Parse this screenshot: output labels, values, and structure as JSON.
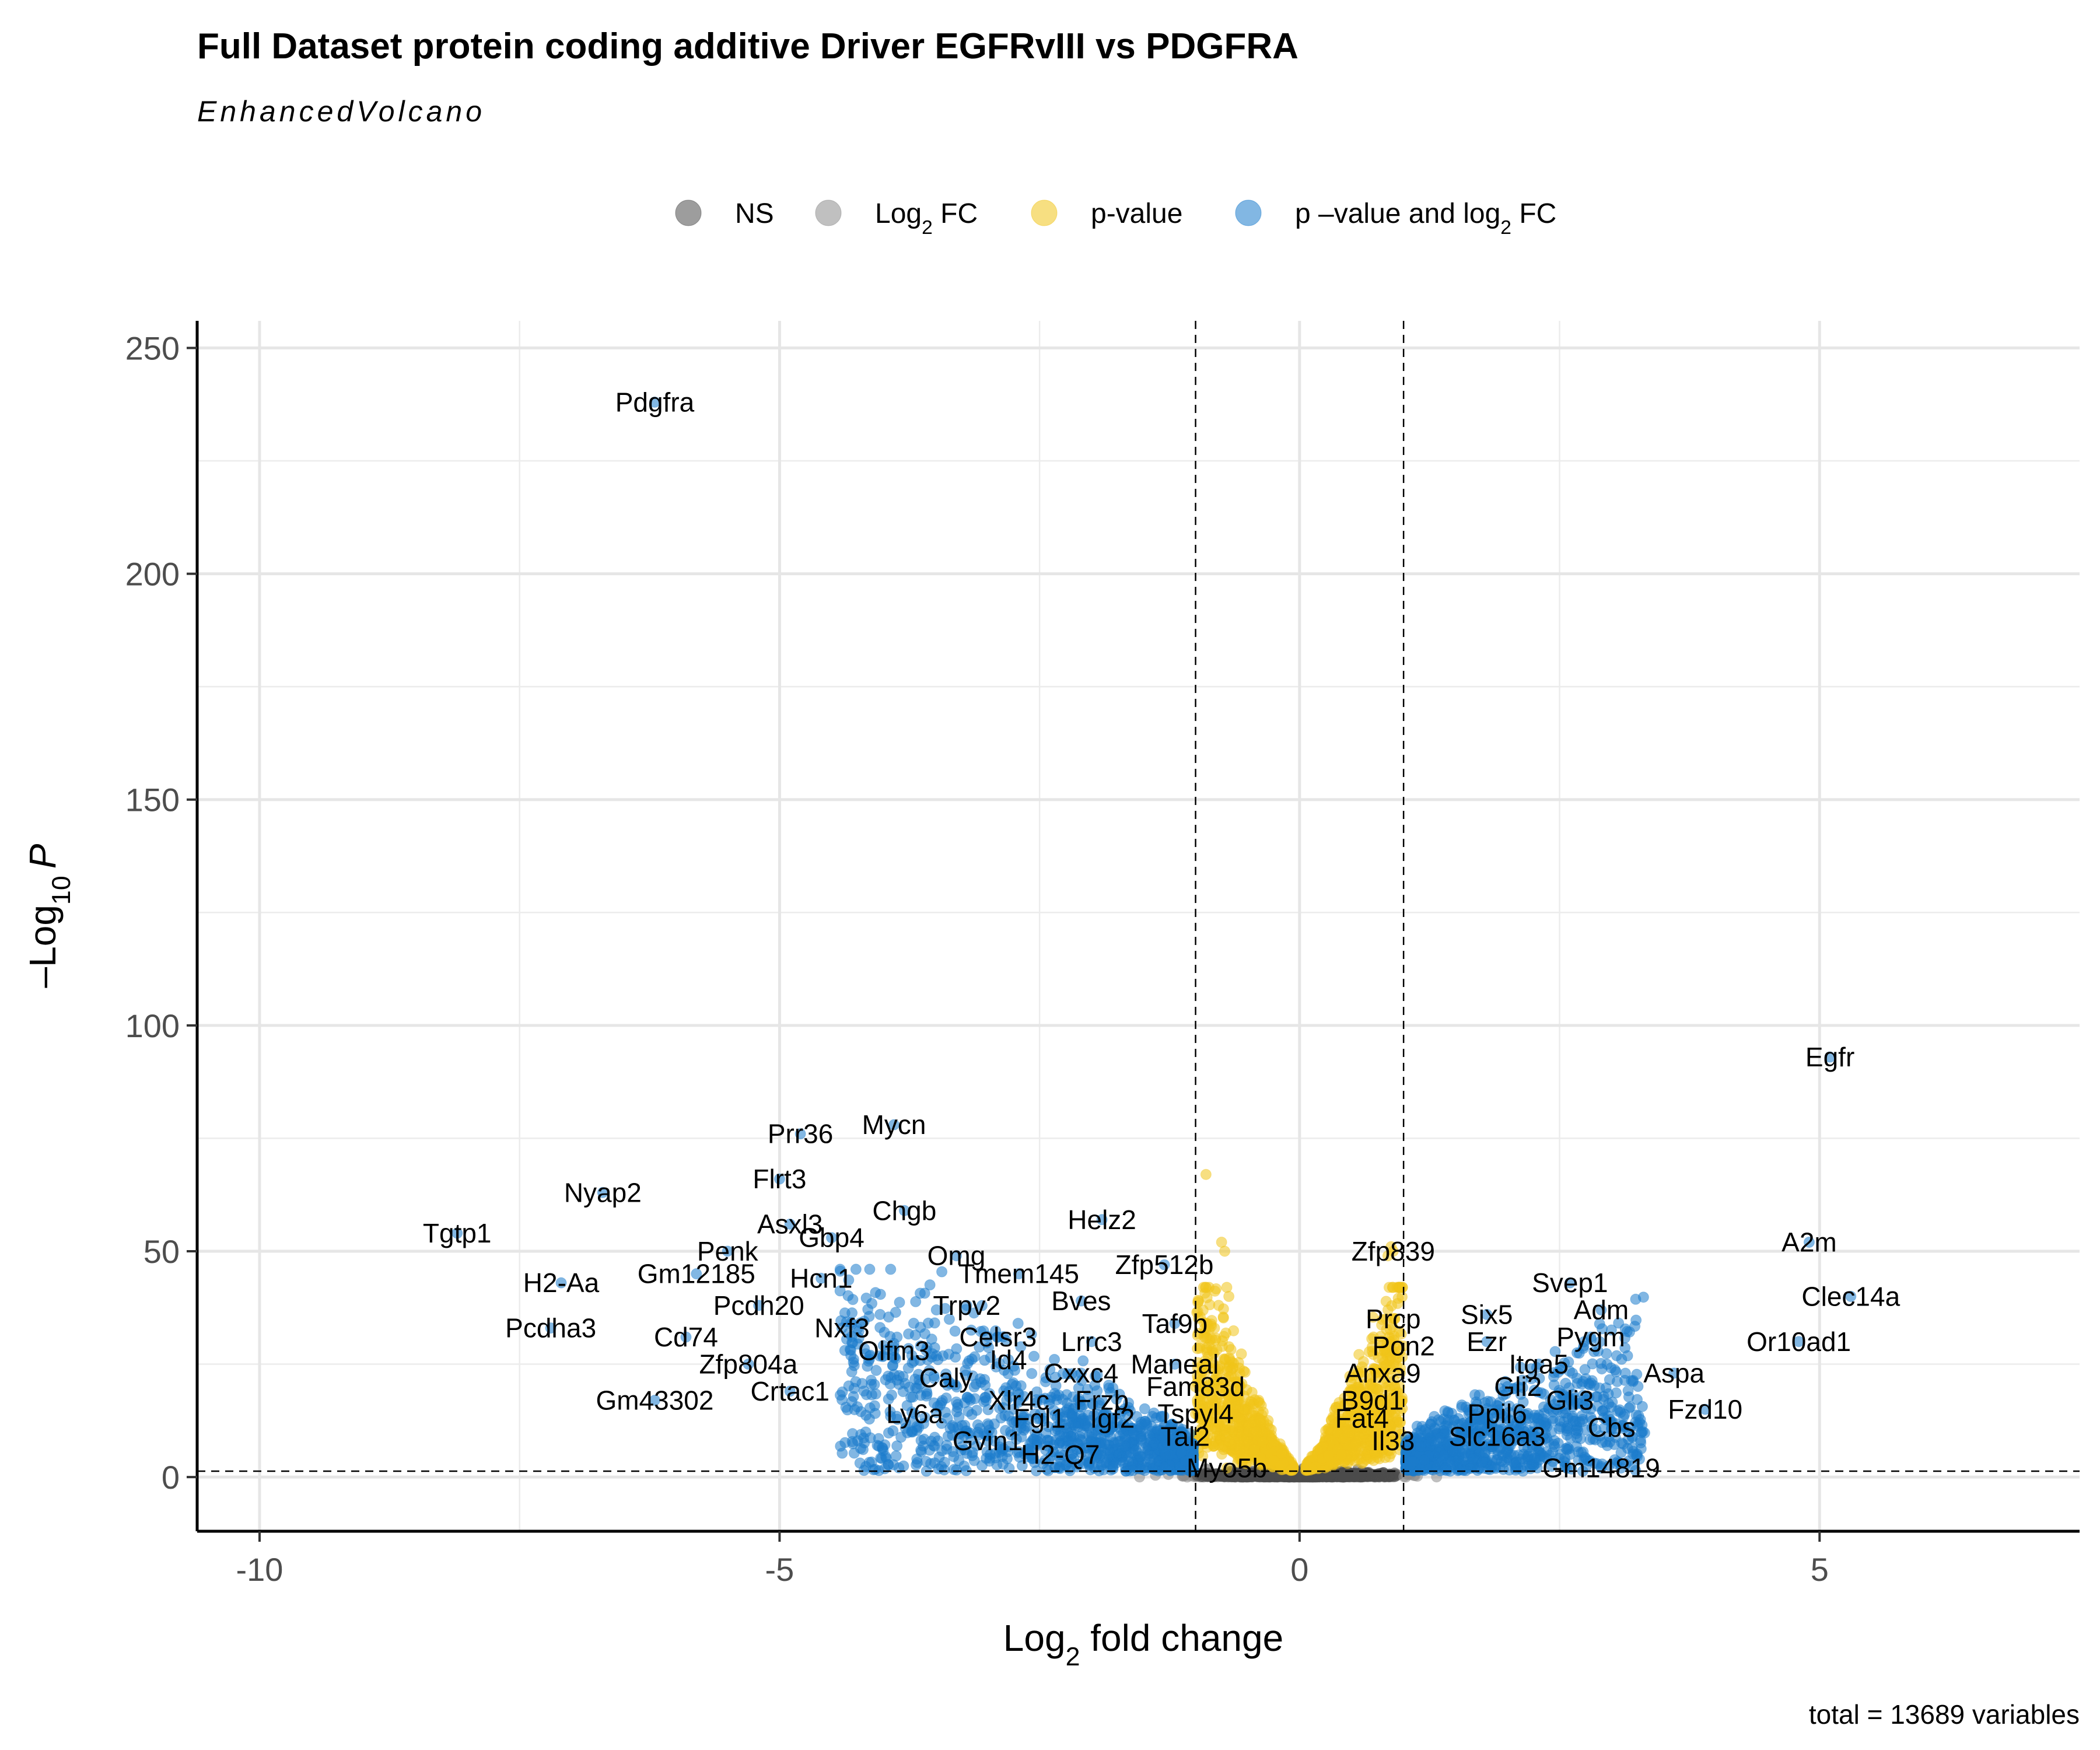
{
  "chart_data": {
    "type": "scatter",
    "title": "Full Dataset protein coding additive Driver EGFRvIII vs PDGFRA",
    "subtitle": "EnhancedVolcano",
    "xlabel": {
      "base": "Log",
      "sub": "2",
      "rest": " fold change"
    },
    "ylabel": {
      "base": "–Log",
      "sub": "10",
      "italic": "P"
    },
    "caption": "total = 13689 variables",
    "xlim": [
      -10.6,
      7.5
    ],
    "ylim": [
      -12,
      256
    ],
    "x_ticks": [
      -10,
      -5,
      0,
      5
    ],
    "x_tick_labels": [
      "-10",
      "-5",
      "0",
      "5"
    ],
    "y_ticks": [
      0,
      50,
      100,
      150,
      200,
      250
    ],
    "y_tick_labels": [
      "0",
      "50",
      "100",
      "150",
      "200",
      "250"
    ],
    "fc_cutoff": 1,
    "p_cutoff_log": 1.3,
    "grid": true,
    "legend": {
      "position": "top",
      "items": [
        {
          "key": "ns",
          "label": "NS",
          "color": "#4d4d4d"
        },
        {
          "key": "fc",
          "label": "Log",
          "sub": "2",
          "rest": " FC",
          "color": "#8c8c8c"
        },
        {
          "key": "p",
          "label": "p-value",
          "color": "#f0c419"
        },
        {
          "key": "both",
          "label": "p –value and log",
          "sub": "2",
          "rest": " FC",
          "color": "#1b7bcc"
        }
      ]
    },
    "labeled_genes": [
      {
        "name": "Pdgfra",
        "x": -6.2,
        "y": 238
      },
      {
        "name": "Egfr",
        "x": 5.1,
        "y": 93
      },
      {
        "name": "Prr36",
        "x": -4.8,
        "y": 76
      },
      {
        "name": "Mycn",
        "x": -3.9,
        "y": 78
      },
      {
        "name": "Nyap2",
        "x": -6.7,
        "y": 63
      },
      {
        "name": "Flrt3",
        "x": -5.0,
        "y": 66
      },
      {
        "name": "Tgtp1",
        "x": -8.1,
        "y": 54
      },
      {
        "name": "Asxl3",
        "x": -4.9,
        "y": 56
      },
      {
        "name": "Chgb",
        "x": -3.8,
        "y": 59
      },
      {
        "name": "Gbp4",
        "x": -4.5,
        "y": 53
      },
      {
        "name": "Helz2",
        "x": -1.9,
        "y": 57
      },
      {
        "name": "A2m",
        "x": 4.9,
        "y": 52
      },
      {
        "name": "Penk",
        "x": -5.5,
        "y": 50
      },
      {
        "name": "Omg",
        "x": -3.3,
        "y": 49
      },
      {
        "name": "Zfp512b",
        "x": -1.3,
        "y": 47
      },
      {
        "name": "Zfp839",
        "x": 0.9,
        "y": 50
      },
      {
        "name": "H2-Aa",
        "x": -7.1,
        "y": 43
      },
      {
        "name": "Gm12185",
        "x": -5.8,
        "y": 45
      },
      {
        "name": "Hcn1",
        "x": -4.6,
        "y": 44
      },
      {
        "name": "Tmem145",
        "x": -2.7,
        "y": 45
      },
      {
        "name": "Svep1",
        "x": 2.6,
        "y": 43
      },
      {
        "name": "Clec14a",
        "x": 5.3,
        "y": 40
      },
      {
        "name": "Pcdh20",
        "x": -5.2,
        "y": 38
      },
      {
        "name": "Trpv2",
        "x": -3.2,
        "y": 38
      },
      {
        "name": "Bves",
        "x": -2.1,
        "y": 39
      },
      {
        "name": "Six5",
        "x": 1.8,
        "y": 36
      },
      {
        "name": "Adm",
        "x": 2.9,
        "y": 37
      },
      {
        "name": "Pcdha3",
        "x": -7.2,
        "y": 33
      },
      {
        "name": "Taf9b",
        "x": -1.2,
        "y": 34
      },
      {
        "name": "Prcp",
        "x": 0.9,
        "y": 35
      },
      {
        "name": "Cd74",
        "x": -5.9,
        "y": 31
      },
      {
        "name": "Nxf3",
        "x": -4.4,
        "y": 33
      },
      {
        "name": "Celsr3",
        "x": -2.9,
        "y": 31
      },
      {
        "name": "Lrrc3",
        "x": -2.0,
        "y": 30
      },
      {
        "name": "Ezr",
        "x": 1.8,
        "y": 30
      },
      {
        "name": "Pygm",
        "x": 2.8,
        "y": 31
      },
      {
        "name": "Or10ad1",
        "x": 4.8,
        "y": 30
      },
      {
        "name": "Pon2",
        "x": 1.0,
        "y": 29
      },
      {
        "name": "Olfm3",
        "x": -3.9,
        "y": 28
      },
      {
        "name": "Zfp804a",
        "x": -5.3,
        "y": 25
      },
      {
        "name": "Id4",
        "x": -2.8,
        "y": 26
      },
      {
        "name": "Maneal",
        "x": -1.2,
        "y": 25
      },
      {
        "name": "Itga5",
        "x": 2.3,
        "y": 25
      },
      {
        "name": "Aspa",
        "x": 3.6,
        "y": 23
      },
      {
        "name": "Cxxc4",
        "x": -2.1,
        "y": 23
      },
      {
        "name": "Anxa9",
        "x": 0.8,
        "y": 23
      },
      {
        "name": "Caly",
        "x": -3.4,
        "y": 22
      },
      {
        "name": "Crtac1",
        "x": -4.9,
        "y": 19
      },
      {
        "name": "Fam83d",
        "x": -1.0,
        "y": 20
      },
      {
        "name": "Gli2",
        "x": 2.1,
        "y": 20
      },
      {
        "name": "Xlr4c",
        "x": -2.7,
        "y": 17
      },
      {
        "name": "Frzb",
        "x": -1.9,
        "y": 17
      },
      {
        "name": "Gli3",
        "x": 2.6,
        "y": 17
      },
      {
        "name": "Fzd10",
        "x": 3.9,
        "y": 15
      },
      {
        "name": "B9d1",
        "x": 0.7,
        "y": 17
      },
      {
        "name": "Gm43302",
        "x": -6.2,
        "y": 17
      },
      {
        "name": "Ly6a",
        "x": -3.7,
        "y": 14
      },
      {
        "name": "Fgl1",
        "x": -2.5,
        "y": 13
      },
      {
        "name": "Igf2",
        "x": -1.8,
        "y": 13
      },
      {
        "name": "Tspyl4",
        "x": -1.0,
        "y": 14
      },
      {
        "name": "Ppil6",
        "x": 1.9,
        "y": 14
      },
      {
        "name": "Fat4",
        "x": 0.6,
        "y": 13
      },
      {
        "name": "Cbs",
        "x": 3.0,
        "y": 11
      },
      {
        "name": "Gvin1",
        "x": -3.0,
        "y": 8
      },
      {
        "name": "Tal2",
        "x": -1.1,
        "y": 9
      },
      {
        "name": "Slc16a3",
        "x": 1.9,
        "y": 9
      },
      {
        "name": "Il33",
        "x": 0.9,
        "y": 8
      },
      {
        "name": "H2-Q7",
        "x": -2.3,
        "y": 5
      },
      {
        "name": "Gm14819",
        "x": 2.9,
        "y": 2
      },
      {
        "name": "Myo5b",
        "x": -0.7,
        "y": 2
      }
    ]
  }
}
